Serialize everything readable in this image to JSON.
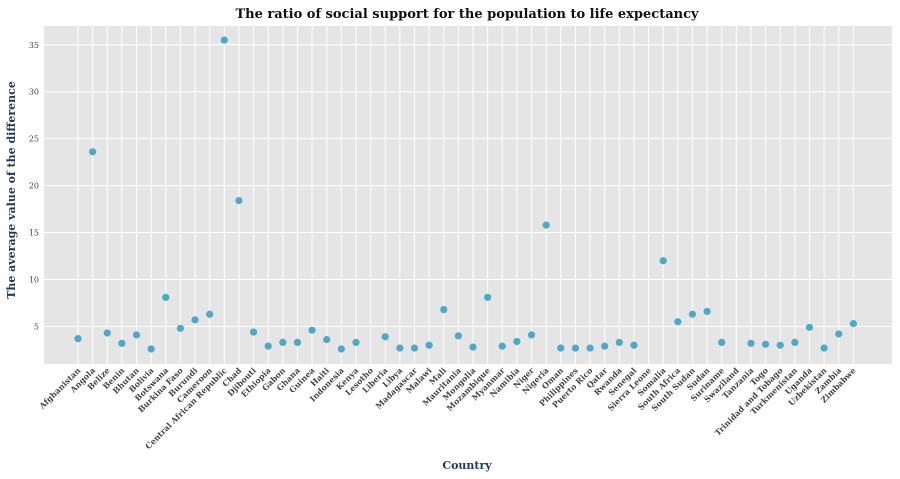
{
  "chart_data": {
    "type": "scatter",
    "title": "The ratio of social support for the population to life expectancy",
    "xlabel": "Country",
    "ylabel": "The average value of the difference",
    "ylim": [
      1.0,
      37.0
    ],
    "yticks": [
      5,
      10,
      15,
      20,
      25,
      30,
      35
    ],
    "grid": true,
    "categories": [
      "Afghanistan",
      "Angola",
      "Belize",
      "Benin",
      "Bhutan",
      "Bolivia",
      "Botswana",
      "Burkina Faso",
      "Burundi",
      "Cameroon",
      "Central African Republic",
      "Chad",
      "Djibouti",
      "Ethiopia",
      "Gabon",
      "Ghana",
      "Guinea",
      "Haiti",
      "Indonesia",
      "Kenya",
      "Lesotho",
      "Liberia",
      "Libya",
      "Madagascar",
      "Malawi",
      "Mali",
      "Mauritania",
      "Mongolia",
      "Mozambique",
      "Myanmar",
      "Namibia",
      "Niger",
      "Nigeria",
      "Oman",
      "Philippines",
      "Puerto Rico",
      "Qatar",
      "Rwanda",
      "Senegal",
      "Sierra Leone",
      "Somalia",
      "South Africa",
      "South Sudan",
      "Sudan",
      "Suriname",
      "Swaziland",
      "Tanzania",
      "Togo",
      "Trinidad and Tobago",
      "Turkmenistan",
      "Uganda",
      "Uzbekistan",
      "Zambia",
      "Zimbabwe"
    ],
    "values": [
      3.7,
      23.6,
      4.3,
      3.2,
      4.1,
      2.6,
      8.1,
      4.8,
      5.7,
      6.3,
      35.5,
      18.4,
      4.4,
      2.9,
      3.3,
      3.3,
      4.6,
      3.6,
      2.6,
      3.3,
      null,
      3.9,
      2.7,
      2.7,
      3.0,
      6.8,
      4.0,
      2.8,
      8.1,
      2.9,
      3.4,
      4.1,
      15.8,
      2.7,
      2.7,
      2.7,
      2.9,
      3.3,
      3.0,
      null,
      12.0,
      5.5,
      6.3,
      6.6,
      3.3,
      null,
      3.2,
      3.1,
      3.0,
      3.3,
      4.9,
      2.7,
      4.2,
      5.3
    ],
    "marker_color": "#4ea9c9",
    "background_color": "#e5e5e5"
  }
}
